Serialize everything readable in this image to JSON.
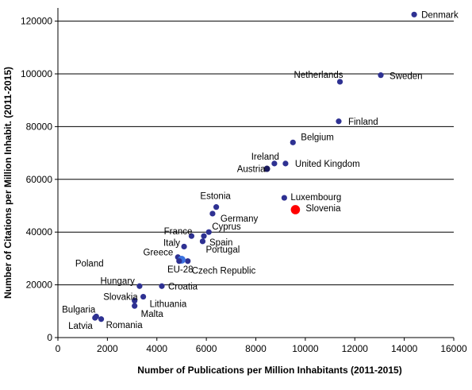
{
  "chart_data": {
    "type": "scatter",
    "xlabel": "Number of Publications per Million Inhabitants (2011-2015)",
    "ylabel": "Number of Citations per Million Inhabit. (2011-2015)",
    "xlim": [
      0,
      16000
    ],
    "ylim": [
      0,
      125000
    ],
    "xticks": [
      0,
      2000,
      4000,
      6000,
      8000,
      10000,
      12000,
      14000,
      16000
    ],
    "yticks": [
      0,
      20000,
      40000,
      60000,
      80000,
      100000,
      120000
    ],
    "xtick_labels": [
      "0",
      "2000",
      "4000",
      "6000",
      "8000",
      "10000",
      "12000",
      "14000",
      "16000"
    ],
    "ytick_labels": [
      "0",
      "20000",
      "40000",
      "60000",
      "80000",
      "100000",
      "120000"
    ],
    "grid": "horizontal",
    "colors": {
      "default": "#2e3192",
      "slovenia": "#ff0000",
      "eu28": "#3b72e0",
      "austria": "#1a1a5e"
    },
    "points": [
      {
        "label": "Denmark",
        "x": 14400,
        "y": 122500
      },
      {
        "label": "Sweden",
        "x": 13050,
        "y": 99500
      },
      {
        "label": "Netherlands",
        "x": 11400,
        "y": 97000
      },
      {
        "label": "Finland",
        "x": 11350,
        "y": 82000
      },
      {
        "label": "Belgium",
        "x": 9500,
        "y": 74000
      },
      {
        "label": "Ireland",
        "x": 8750,
        "y": 66000
      },
      {
        "label": "United Kingdom",
        "x": 9200,
        "y": 66000
      },
      {
        "label": "Austria",
        "x": 8450,
        "y": 64000
      },
      {
        "label": "Luxembourg",
        "x": 9150,
        "y": 53000
      },
      {
        "label": "Slovenia",
        "x": 9600,
        "y": 48500
      },
      {
        "label": "Estonia",
        "x": 6400,
        "y": 49500
      },
      {
        "label": "Germany",
        "x": 6250,
        "y": 47000
      },
      {
        "label": "Cyprus",
        "x": 6100,
        "y": 40000
      },
      {
        "label": "France",
        "x": 5400,
        "y": 38500
      },
      {
        "label": "Spain",
        "x": 5900,
        "y": 38500
      },
      {
        "label": "Portugal",
        "x": 5850,
        "y": 36500
      },
      {
        "label": "Italy",
        "x": 5100,
        "y": 34500
      },
      {
        "label": "Greece",
        "x": 4850,
        "y": 30500
      },
      {
        "label": "Czech Republic",
        "x": 5250,
        "y": 29000
      },
      {
        "label": "EU-28",
        "x": 5000,
        "y": 29500
      },
      {
        "label": "Poland",
        "x": 4900,
        "y": 29000
      },
      {
        "label": "Hungary",
        "x": 3300,
        "y": 19500
      },
      {
        "label": "Croatia",
        "x": 4200,
        "y": 19500
      },
      {
        "label": "Lithuania",
        "x": 3450,
        "y": 15500
      },
      {
        "label": "Slovakia",
        "x": 3100,
        "y": 14000
      },
      {
        "label": "Malta",
        "x": 3100,
        "y": 12000
      },
      {
        "label": "Bulgaria",
        "x": 1550,
        "y": 8000
      },
      {
        "label": "Latvia",
        "x": 1500,
        "y": 7500
      },
      {
        "label": "Romania",
        "x": 1750,
        "y": 7000
      }
    ]
  }
}
